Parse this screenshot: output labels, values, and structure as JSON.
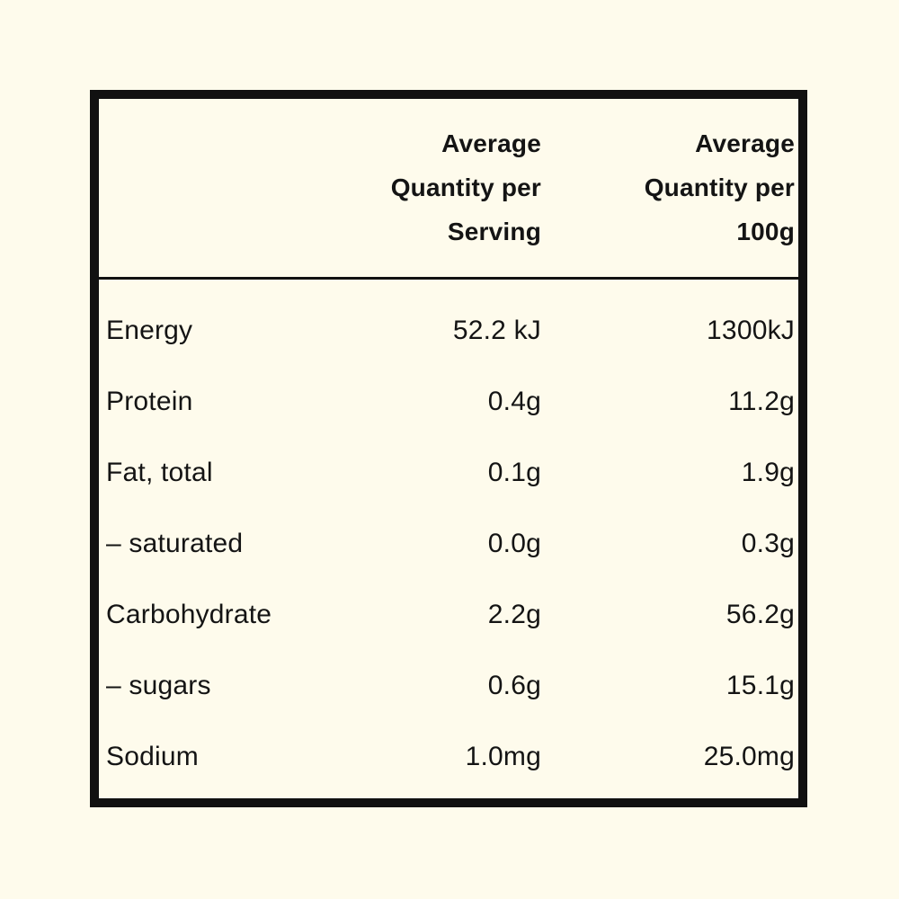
{
  "page": {
    "background_color": "#FEFBEC",
    "border_color": "#111111",
    "text_color": "#141414"
  },
  "table": {
    "columns": [
      {
        "id": "nutrient",
        "label": ""
      },
      {
        "id": "per_serving",
        "label": "Average Quantity per Serving",
        "label_lines": [
          "Average",
          "Quantity per",
          "Serving"
        ]
      },
      {
        "id": "per_100g",
        "label": "Average Quantity per 100g",
        "label_lines": [
          "Average",
          "Quantity per",
          "100g"
        ]
      }
    ],
    "rows": [
      {
        "nutrient": "Energy",
        "per_serving": "52.2 kJ",
        "per_100g": "1300kJ"
      },
      {
        "nutrient": "Protein",
        "per_serving": "0.4g",
        "per_100g": "11.2g"
      },
      {
        "nutrient": "Fat, total",
        "per_serving": "0.1g",
        "per_100g": "1.9g"
      },
      {
        "nutrient": "– saturated",
        "per_serving": "0.0g",
        "per_100g": "0.3g"
      },
      {
        "nutrient": "Carbohydrate",
        "per_serving": "2.2g",
        "per_100g": "56.2g"
      },
      {
        "nutrient": "– sugars",
        "per_serving": "0.6g",
        "per_100g": "15.1g"
      },
      {
        "nutrient": "Sodium",
        "per_serving": "1.0mg",
        "per_100g": "25.0mg"
      }
    ]
  }
}
